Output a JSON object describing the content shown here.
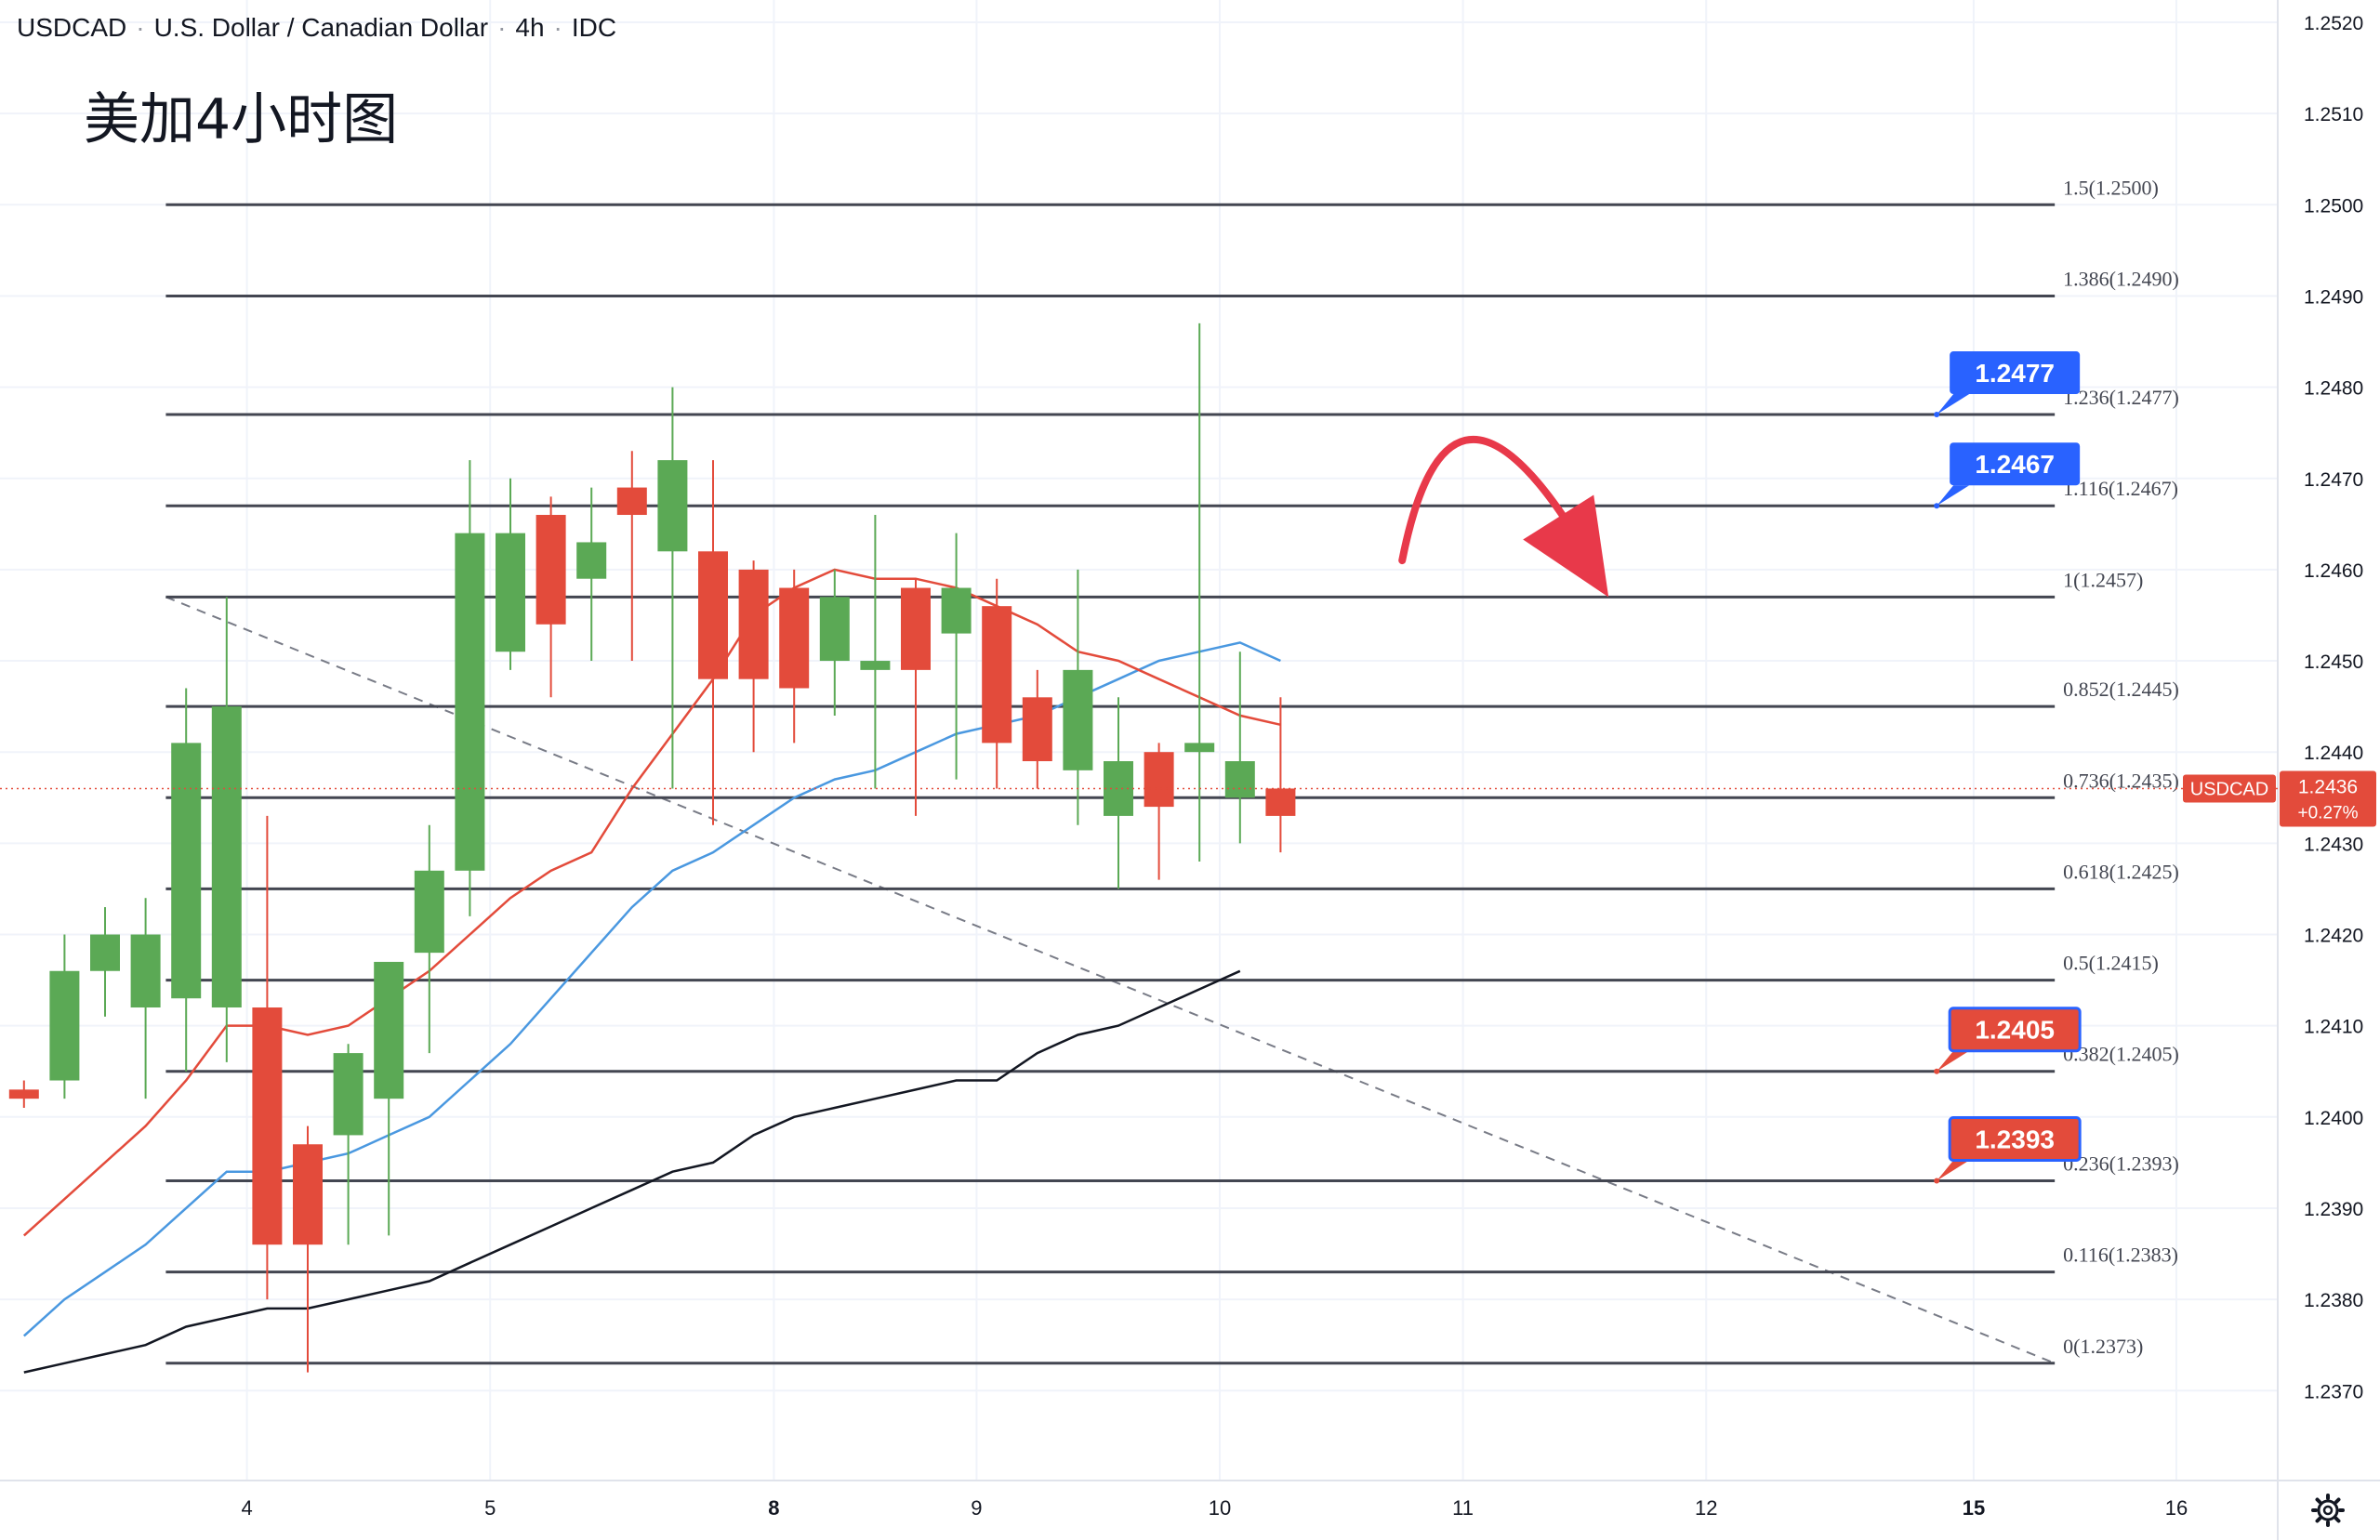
{
  "header": {
    "symbol": "USDCAD",
    "name": "U.S. Dollar / Canadian Dollar",
    "interval": "4h",
    "source": "IDC"
  },
  "annotation_text": "美加4小时图",
  "price_tag": {
    "symbol": "USDCAD",
    "price": "1.2436",
    "change": "+0.27%"
  },
  "colors": {
    "up": "#5ba955",
    "down": "#e34b3b",
    "fib_line": "#434651",
    "ma_fast": "#e34b3b",
    "ma_mid": "#4a98e0",
    "ma_slow": "#131722",
    "callout_blue": "#2962ff",
    "callout_red": "#e34b3b",
    "arrow": "#e8394a"
  },
  "icons": {
    "settings": "gear-icon"
  },
  "chart_data": {
    "type": "candlestick",
    "title": "USDCAD · U.S. Dollar / Canadian Dollar · 4h · IDC",
    "ylim": [
      1.2365,
      1.2525
    ],
    "y_ticks": [
      "1.2520",
      "1.2510",
      "1.2500",
      "1.2490",
      "1.2480",
      "1.2470",
      "1.2460",
      "1.2450",
      "1.2440",
      "1.2430",
      "1.2420",
      "1.2410",
      "1.2400",
      "1.2390",
      "1.2380",
      "1.2370"
    ],
    "x_ticks": [
      {
        "label": "4",
        "bar": 6
      },
      {
        "label": "5",
        "bar": 12
      },
      {
        "label": "8",
        "bar": 19
      },
      {
        "label": "9",
        "bar": 24
      },
      {
        "label": "10",
        "bar": 30
      },
      {
        "label": "11",
        "bar": 36
      },
      {
        "label": "12",
        "bar": 42
      },
      {
        "label": "15",
        "bar": 48.6
      },
      {
        "label": "16",
        "bar": 53.6
      }
    ],
    "bars_visible": 57,
    "candles": [
      {
        "o": 1.2403,
        "h": 1.2404,
        "l": 1.2401,
        "c": 1.2402
      },
      {
        "o": 1.2404,
        "h": 1.242,
        "l": 1.2402,
        "c": 1.2416
      },
      {
        "o": 1.2416,
        "h": 1.2423,
        "l": 1.2411,
        "c": 1.242
      },
      {
        "o": 1.2412,
        "h": 1.2424,
        "l": 1.2402,
        "c": 1.242
      },
      {
        "o": 1.2413,
        "h": 1.2447,
        "l": 1.2405,
        "c": 1.2441
      },
      {
        "o": 1.2412,
        "h": 1.2457,
        "l": 1.2406,
        "c": 1.2445
      },
      {
        "o": 1.2412,
        "h": 1.2433,
        "l": 1.238,
        "c": 1.2386
      },
      {
        "o": 1.2397,
        "h": 1.2399,
        "l": 1.2372,
        "c": 1.2386
      },
      {
        "o": 1.2398,
        "h": 1.2408,
        "l": 1.2386,
        "c": 1.2407
      },
      {
        "o": 1.2402,
        "h": 1.2417,
        "l": 1.2387,
        "c": 1.2417
      },
      {
        "o": 1.2418,
        "h": 1.2432,
        "l": 1.2407,
        "c": 1.2427
      },
      {
        "o": 1.2427,
        "h": 1.2472,
        "l": 1.2422,
        "c": 1.2464
      },
      {
        "o": 1.2451,
        "h": 1.247,
        "l": 1.2449,
        "c": 1.2464
      },
      {
        "o": 1.2466,
        "h": 1.2468,
        "l": 1.2446,
        "c": 1.2454
      },
      {
        "o": 1.2459,
        "h": 1.2469,
        "l": 1.245,
        "c": 1.2463
      },
      {
        "o": 1.2469,
        "h": 1.2473,
        "l": 1.245,
        "c": 1.2466
      },
      {
        "o": 1.2462,
        "h": 1.248,
        "l": 1.2436,
        "c": 1.2472
      },
      {
        "o": 1.2462,
        "h": 1.2472,
        "l": 1.2432,
        "c": 1.2448
      },
      {
        "o": 1.246,
        "h": 1.2461,
        "l": 1.244,
        "c": 1.2448
      },
      {
        "o": 1.2458,
        "h": 1.246,
        "l": 1.2441,
        "c": 1.2447
      },
      {
        "o": 1.245,
        "h": 1.246,
        "l": 1.2444,
        "c": 1.2457
      },
      {
        "o": 1.2449,
        "h": 1.2466,
        "l": 1.2436,
        "c": 1.245
      },
      {
        "o": 1.2458,
        "h": 1.2459,
        "l": 1.2433,
        "c": 1.2449
      },
      {
        "o": 1.2453,
        "h": 1.2464,
        "l": 1.2437,
        "c": 1.2458
      },
      {
        "o": 1.2456,
        "h": 1.2459,
        "l": 1.2436,
        "c": 1.2441
      },
      {
        "o": 1.2446,
        "h": 1.2449,
        "l": 1.2436,
        "c": 1.2439
      },
      {
        "o": 1.2438,
        "h": 1.246,
        "l": 1.2432,
        "c": 1.2449
      },
      {
        "o": 1.2433,
        "h": 1.2446,
        "l": 1.2425,
        "c": 1.2439
      },
      {
        "o": 1.244,
        "h": 1.2441,
        "l": 1.2426,
        "c": 1.2434
      },
      {
        "o": 1.244,
        "h": 1.2487,
        "l": 1.2428,
        "c": 1.2441
      },
      {
        "o": 1.2435,
        "h": 1.2451,
        "l": 1.243,
        "c": 1.2439
      },
      {
        "o": 1.2436,
        "h": 1.2446,
        "l": 1.2429,
        "c": 1.2433
      }
    ],
    "ma_fast": [
      [
        0,
        1.2387
      ],
      [
        3,
        1.2399
      ],
      [
        4,
        1.2404
      ],
      [
        5,
        1.241
      ],
      [
        6,
        1.241
      ],
      [
        7,
        1.2409
      ],
      [
        8,
        1.241
      ],
      [
        9,
        1.2413
      ],
      [
        10,
        1.2416
      ],
      [
        11,
        1.242
      ],
      [
        12,
        1.2424
      ],
      [
        13,
        1.2427
      ],
      [
        14,
        1.2429
      ],
      [
        15,
        1.2436
      ],
      [
        16,
        1.2442
      ],
      [
        17,
        1.2448
      ],
      [
        18,
        1.2455
      ],
      [
        19,
        1.2458
      ],
      [
        20,
        1.246
      ],
      [
        21,
        1.2459
      ],
      [
        22,
        1.2459
      ],
      [
        23,
        1.2458
      ],
      [
        24,
        1.2456
      ],
      [
        25,
        1.2454
      ],
      [
        26,
        1.2451
      ],
      [
        27,
        1.245
      ],
      [
        28,
        1.2448
      ],
      [
        29,
        1.2446
      ],
      [
        30,
        1.2444
      ],
      [
        31,
        1.2443
      ]
    ],
    "ma_mid": [
      [
        0,
        1.2376
      ],
      [
        1,
        1.238
      ],
      [
        2,
        1.2383
      ],
      [
        3,
        1.2386
      ],
      [
        4,
        1.239
      ],
      [
        5,
        1.2394
      ],
      [
        6,
        1.2394
      ],
      [
        7,
        1.2395
      ],
      [
        8,
        1.2396
      ],
      [
        9,
        1.2398
      ],
      [
        10,
        1.24
      ],
      [
        11,
        1.2404
      ],
      [
        12,
        1.2408
      ],
      [
        13,
        1.2413
      ],
      [
        14,
        1.2418
      ],
      [
        15,
        1.2423
      ],
      [
        16,
        1.2427
      ],
      [
        17,
        1.2429
      ],
      [
        18,
        1.2432
      ],
      [
        19,
        1.2435
      ],
      [
        20,
        1.2437
      ],
      [
        21,
        1.2438
      ],
      [
        22,
        1.244
      ],
      [
        23,
        1.2442
      ],
      [
        24,
        1.2443
      ],
      [
        25,
        1.2444
      ],
      [
        26,
        1.2446
      ],
      [
        27,
        1.2448
      ],
      [
        28,
        1.245
      ],
      [
        29,
        1.2451
      ],
      [
        30,
        1.2452
      ],
      [
        31,
        1.245
      ]
    ],
    "ma_slow": [
      [
        0,
        1.2372
      ],
      [
        1,
        1.2373
      ],
      [
        2,
        1.2374
      ],
      [
        3,
        1.2375
      ],
      [
        4,
        1.2377
      ],
      [
        5,
        1.2378
      ],
      [
        6,
        1.2379
      ],
      [
        7,
        1.2379
      ],
      [
        8,
        1.238
      ],
      [
        9,
        1.2381
      ],
      [
        10,
        1.2382
      ],
      [
        11,
        1.2384
      ],
      [
        12,
        1.2386
      ],
      [
        13,
        1.2388
      ],
      [
        14,
        1.239
      ],
      [
        15,
        1.2392
      ],
      [
        16,
        1.2394
      ],
      [
        17,
        1.2395
      ],
      [
        18,
        1.2398
      ],
      [
        19,
        1.24
      ],
      [
        20,
        1.2401
      ],
      [
        21,
        1.2402
      ],
      [
        22,
        1.2403
      ],
      [
        23,
        1.2404
      ],
      [
        24,
        1.2404
      ],
      [
        25,
        1.2407
      ],
      [
        26,
        1.2409
      ],
      [
        27,
        1.241
      ],
      [
        28,
        1.2412
      ],
      [
        29,
        1.2414
      ],
      [
        30,
        1.2416
      ]
    ],
    "fib_levels": [
      {
        "ratio": "1.5",
        "price": 1.25,
        "label": "1.5(1.2500)"
      },
      {
        "ratio": "1.386",
        "price": 1.249,
        "label": "1.386(1.2490)"
      },
      {
        "ratio": "1.236",
        "price": 1.2477,
        "label": "1.236(1.2477)"
      },
      {
        "ratio": "1.116",
        "price": 1.2467,
        "label": "1.116(1.2467)"
      },
      {
        "ratio": "1",
        "price": 1.2457,
        "label": "1(1.2457)"
      },
      {
        "ratio": "0.852",
        "price": 1.2445,
        "label": "0.852(1.2445)"
      },
      {
        "ratio": "0.736",
        "price": 1.2435,
        "label": "0.736(1.2435)"
      },
      {
        "ratio": "0.618",
        "price": 1.2425,
        "label": "0.618(1.2425)"
      },
      {
        "ratio": "0.5",
        "price": 1.2415,
        "label": "0.5(1.2415)"
      },
      {
        "ratio": "0.382",
        "price": 1.2405,
        "label": "0.382(1.2405)"
      },
      {
        "ratio": "0.236",
        "price": 1.2393,
        "label": "0.236(1.2393)"
      },
      {
        "ratio": "0.116",
        "price": 1.2383,
        "label": "0.116(1.2383)"
      },
      {
        "ratio": "0",
        "price": 1.2373,
        "label": "0(1.2373)"
      }
    ],
    "fib_bar_range": [
      4,
      50.6
    ],
    "callouts": [
      {
        "text": "1.2477",
        "price": 1.2477,
        "color": "blue"
      },
      {
        "text": "1.2467",
        "price": 1.2467,
        "color": "blue"
      },
      {
        "text": "1.2405",
        "price": 1.2405,
        "color": "red"
      },
      {
        "text": "1.2393",
        "price": 1.2393,
        "color": "red"
      }
    ],
    "trendline": {
      "from": [
        4,
        1.2457
      ],
      "to": [
        50.6,
        1.2373
      ],
      "style": "dashed"
    },
    "last_price": 1.2436,
    "projection_arrow": {
      "start": [
        34.5,
        1.2461
      ],
      "peak": [
        36.5,
        1.247
      ],
      "end": [
        39.5,
        1.2458
      ],
      "direction": "down"
    },
    "grid": true,
    "legend": "none"
  }
}
